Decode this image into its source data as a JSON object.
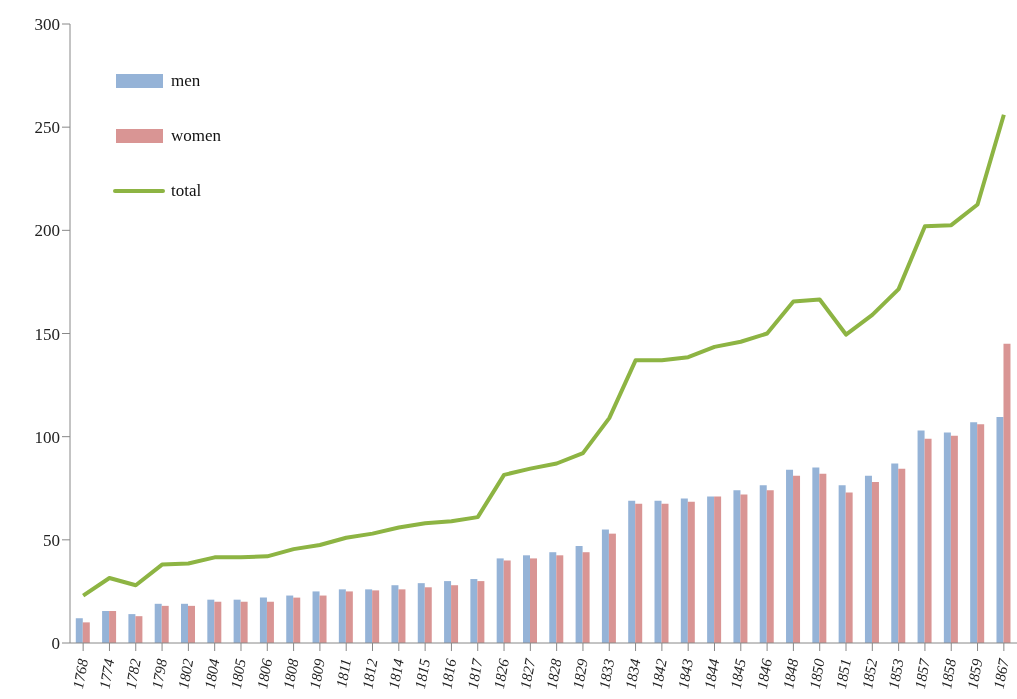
{
  "chart_data": {
    "type": "bar",
    "categories": [
      "1768",
      "1774",
      "1782",
      "1798",
      "1802",
      "1804",
      "1805",
      "1806",
      "1808",
      "1809",
      "1811",
      "1812",
      "1814",
      "1815",
      "1816",
      "1817",
      "1826",
      "1827",
      "1828",
      "1829",
      "1833",
      "1834",
      "1842",
      "1843",
      "1844",
      "1845",
      "1846",
      "1848",
      "1850",
      "1851",
      "1852",
      "1853",
      "1857",
      "1858",
      "1859",
      "1867"
    ],
    "series": [
      {
        "name": "men",
        "color": "#95b3d7",
        "values": [
          12,
          15.5,
          14,
          19,
          19,
          21,
          21,
          22,
          23,
          25,
          26,
          26,
          28,
          29,
          30,
          31,
          41,
          42.5,
          44,
          47,
          55,
          69,
          69,
          70,
          71,
          74,
          76.5,
          84,
          85,
          76.5,
          81,
          87,
          103,
          102,
          107,
          109.5
        ]
      },
      {
        "name": "women",
        "color": "#d99594",
        "values": [
          10,
          15.5,
          13,
          18,
          18,
          20,
          20,
          20,
          22,
          23,
          25,
          25.5,
          26,
          27,
          28,
          30,
          40,
          41,
          42.5,
          44,
          53,
          67.5,
          67.5,
          68.5,
          71,
          72,
          74,
          81,
          82,
          73,
          78,
          84.5,
          99,
          100.5,
          106,
          145
        ]
      },
      {
        "name": "total",
        "type": "line",
        "color": "#8db443",
        "values": [
          23,
          31.5,
          28,
          38,
          38.5,
          41.5,
          41.5,
          42,
          45.5,
          47.5,
          51,
          53,
          56,
          58,
          59,
          61,
          81.5,
          84.5,
          87,
          92,
          109,
          137,
          137,
          138.5,
          143.5,
          146,
          150,
          165.5,
          166.5,
          149.5,
          159,
          171.5,
          202,
          202.5,
          212.5,
          256
        ]
      }
    ],
    "ylim": [
      0,
      300
    ],
    "yticks": [
      0,
      50,
      100,
      150,
      200,
      250,
      300
    ],
    "grid": false,
    "legend": "top left",
    "marker": "none",
    "line_style": "solid"
  }
}
